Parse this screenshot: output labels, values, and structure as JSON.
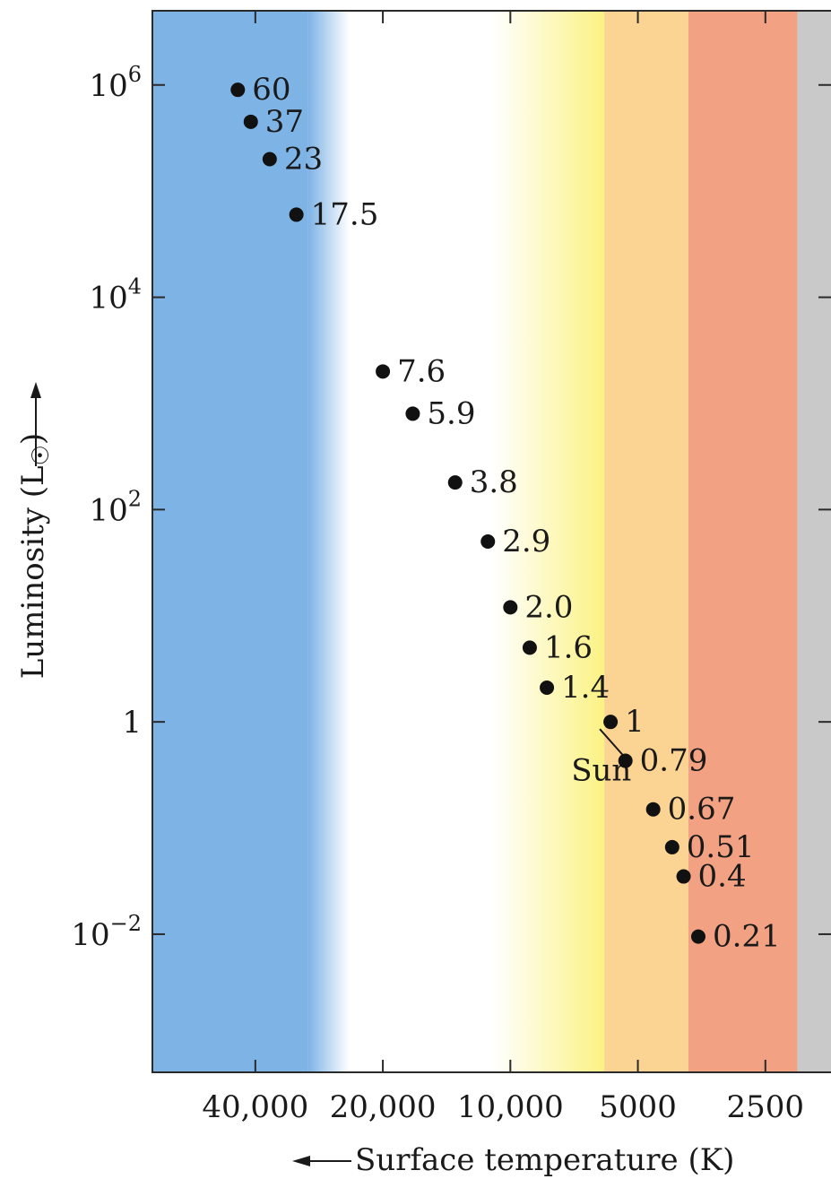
{
  "chart_data": {
    "type": "scatter",
    "xlabel": "Surface temperature (K)",
    "ylabel": "Luminosity (L",
    "ylabel_suffix": ") ",
    "x_scale": "log",
    "x_reversed": true,
    "y_scale": "log",
    "xlim": [
      70000,
      1750
    ],
    "ylim": [
      0.0005,
      5000000
    ],
    "x_ticks": [
      {
        "value": 40000,
        "label": "40,000"
      },
      {
        "value": 20000,
        "label": "20,000"
      },
      {
        "value": 10000,
        "label": "10,000"
      },
      {
        "value": 5000,
        "label": "5000"
      },
      {
        "value": 2500,
        "label": "2500"
      }
    ],
    "y_ticks": [
      {
        "value": 1000000,
        "base": "10",
        "exp": "6"
      },
      {
        "value": 10000,
        "base": "10",
        "exp": "4"
      },
      {
        "value": 100,
        "base": "10",
        "exp": "2"
      },
      {
        "value": 1,
        "base": "1",
        "exp": ""
      },
      {
        "value": 0.01,
        "base": "10",
        "exp": "−2"
      }
    ],
    "points": [
      {
        "x": 44000,
        "y": 900000,
        "label": "60"
      },
      {
        "x": 41000,
        "y": 450000,
        "label": "37"
      },
      {
        "x": 37000,
        "y": 200000,
        "label": "23"
      },
      {
        "x": 32000,
        "y": 60000,
        "label": "17.5"
      },
      {
        "x": 20000,
        "y": 2000,
        "label": "7.6"
      },
      {
        "x": 17000,
        "y": 800,
        "label": "5.9"
      },
      {
        "x": 13500,
        "y": 180,
        "label": "3.8"
      },
      {
        "x": 11300,
        "y": 50,
        "label": "2.9"
      },
      {
        "x": 10000,
        "y": 12,
        "label": "2.0"
      },
      {
        "x": 9000,
        "y": 5,
        "label": "1.6"
      },
      {
        "x": 8200,
        "y": 2.1,
        "label": "1.4"
      },
      {
        "x": 5800,
        "y": 1.0,
        "label": "1"
      },
      {
        "x": 5350,
        "y": 0.43,
        "label": "0.79"
      },
      {
        "x": 4600,
        "y": 0.15,
        "label": "0.67"
      },
      {
        "x": 4150,
        "y": 0.066,
        "label": "0.51"
      },
      {
        "x": 3900,
        "y": 0.035,
        "label": "0.4"
      },
      {
        "x": 3600,
        "y": 0.0095,
        "label": "0.21"
      }
    ],
    "annotation": {
      "text": "Sun",
      "x": 6100,
      "y": 0.28,
      "target_x": 5800,
      "target_y": 1.0
    },
    "background_bands": [
      {
        "from_x": 70000,
        "to_x": 30000,
        "color": "#7eb3e6"
      },
      {
        "from_x": 30000,
        "to_x": 24000,
        "color": "#ffffff",
        "gradient_from": "#7eb3e6"
      },
      {
        "from_x": 24000,
        "to_x": 11000,
        "color": "#ffffff"
      },
      {
        "from_x": 11000,
        "to_x": 6000,
        "color": "#fbf283",
        "gradient_from": "#ffffff"
      },
      {
        "from_x": 6000,
        "to_x": 3800,
        "color": "#fbd392"
      },
      {
        "from_x": 3800,
        "to_x": 2100,
        "color": "#f2a282"
      },
      {
        "from_x": 2100,
        "to_x": 1750,
        "color": "#c9c9c9"
      }
    ],
    "grid": false
  }
}
